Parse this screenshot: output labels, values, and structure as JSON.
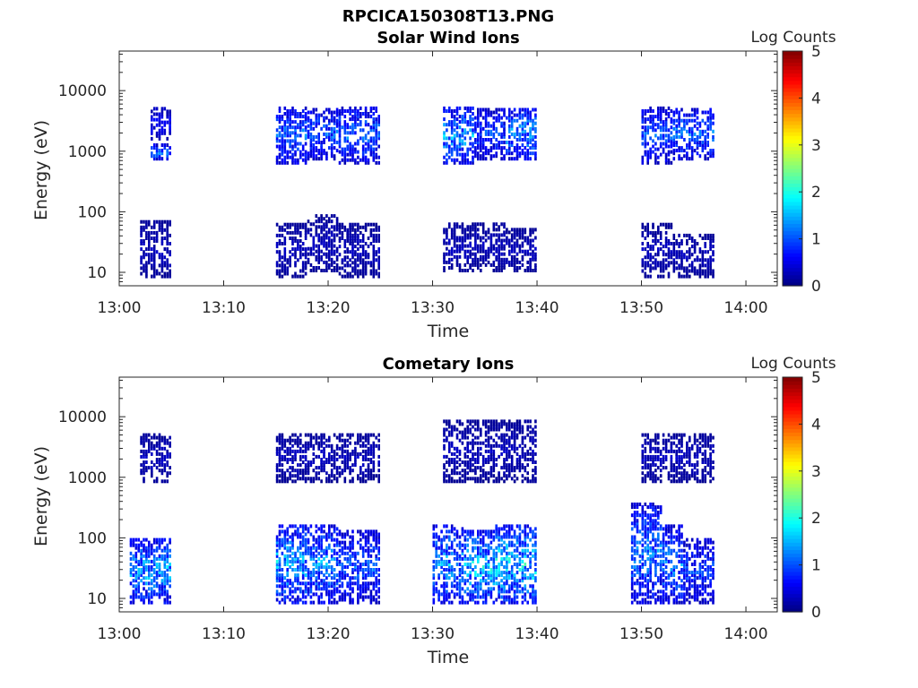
{
  "figure_title": "RPCICA150308T13.PNG",
  "colorbar": {
    "label": "Log Counts",
    "ticks": [
      "0",
      "1",
      "2",
      "3",
      "4",
      "5"
    ],
    "range": [
      0,
      5
    ],
    "colormap": "jet"
  },
  "chart_data": [
    {
      "type": "heatmap",
      "title": "Solar Wind Ions",
      "xlabel": "Time",
      "ylabel": "Energy (eV)",
      "xlim": [
        "13:00",
        "14:03"
      ],
      "ylim": [
        6,
        45000
      ],
      "yscale": "log",
      "x_ticks": [
        "13:00",
        "13:10",
        "13:20",
        "13:30",
        "13:40",
        "13:50",
        "14:00"
      ],
      "y_ticks": [
        "10",
        "100",
        "1000",
        "10000"
      ],
      "grid": false,
      "value_label": "Log Counts",
      "active_intervals": [
        [
          "13:01",
          "13:04"
        ],
        [
          "13:15",
          "13:24"
        ],
        [
          "13:30",
          "13:40"
        ],
        [
          "13:49",
          "13:56"
        ]
      ],
      "clusters": [
        {
          "t0": "13:02",
          "t1": "13:04",
          "e0": 8,
          "e1": 65,
          "value": 0.3
        },
        {
          "t0": "13:03",
          "t1": "13:04",
          "e0": 1500,
          "e1": 5000,
          "value": 0.6
        },
        {
          "t0": "13:03",
          "t1": "13:04",
          "e0": 700,
          "e1": 1200,
          "value": 1.2
        },
        {
          "t0": "13:15",
          "t1": "13:17",
          "e0": 8,
          "e1": 60,
          "value": 0.3
        },
        {
          "t0": "13:15",
          "t1": "13:17",
          "e0": 600,
          "e1": 5000,
          "value": 1.1
        },
        {
          "t0": "13:18",
          "t1": "13:20",
          "e0": 10,
          "e1": 80,
          "value": 0.3
        },
        {
          "t0": "13:18",
          "t1": "13:20",
          "e0": 700,
          "e1": 5000,
          "value": 1.0
        },
        {
          "t0": "13:21",
          "t1": "13:24",
          "e0": 8,
          "e1": 60,
          "value": 0.3
        },
        {
          "t0": "13:21",
          "t1": "13:24",
          "e0": 600,
          "e1": 5000,
          "value": 1.1
        },
        {
          "t0": "13:31",
          "t1": "13:33",
          "e0": 10,
          "e1": 60,
          "value": 0.3
        },
        {
          "t0": "13:31",
          "t1": "13:33",
          "e0": 600,
          "e1": 5000,
          "value": 1.4
        },
        {
          "t0": "13:34",
          "t1": "13:36",
          "e0": 10,
          "e1": 60,
          "value": 0.3
        },
        {
          "t0": "13:34",
          "t1": "13:36",
          "e0": 700,
          "e1": 5000,
          "value": 0.9
        },
        {
          "t0": "13:37",
          "t1": "13:39",
          "e0": 10,
          "e1": 50,
          "value": 0.3
        },
        {
          "t0": "13:37",
          "t1": "13:39",
          "e0": 700,
          "e1": 5000,
          "value": 1.3
        },
        {
          "t0": "13:50",
          "t1": "13:52",
          "e0": 8,
          "e1": 60,
          "value": 0.3
        },
        {
          "t0": "13:50",
          "t1": "13:52",
          "e0": 600,
          "e1": 5000,
          "value": 1.0
        },
        {
          "t0": "13:53",
          "t1": "13:56",
          "e0": 8,
          "e1": 40,
          "value": 0.3
        },
        {
          "t0": "13:53",
          "t1": "13:56",
          "e0": 700,
          "e1": 5000,
          "value": 1.1
        }
      ]
    },
    {
      "type": "heatmap",
      "title": "Cometary Ions",
      "xlabel": "Time",
      "ylabel": "Energy (eV)",
      "xlim": [
        "13:00",
        "14:03"
      ],
      "ylim": [
        6,
        45000
      ],
      "yscale": "log",
      "x_ticks": [
        "13:00",
        "13:10",
        "13:20",
        "13:30",
        "13:40",
        "13:50",
        "14:00"
      ],
      "y_ticks": [
        "10",
        "100",
        "1000",
        "10000"
      ],
      "grid": false,
      "value_label": "Log Counts",
      "active_intervals": [
        [
          "13:01",
          "13:04"
        ],
        [
          "13:15",
          "13:24"
        ],
        [
          "13:30",
          "13:40"
        ],
        [
          "13:49",
          "13:56"
        ]
      ],
      "clusters": [
        {
          "t0": "13:01",
          "t1": "13:04",
          "e0": 8,
          "e1": 90,
          "value": 1.4
        },
        {
          "t0": "13:02",
          "t1": "13:04",
          "e0": 800,
          "e1": 5000,
          "value": 0.3
        },
        {
          "t0": "13:15",
          "t1": "13:17",
          "e0": 8,
          "e1": 150,
          "value": 1.5
        },
        {
          "t0": "13:18",
          "t1": "13:20",
          "e0": 8,
          "e1": 150,
          "value": 1.3
        },
        {
          "t0": "13:21",
          "t1": "13:24",
          "e0": 8,
          "e1": 120,
          "value": 1.0
        },
        {
          "t0": "13:15",
          "t1": "13:24",
          "e0": 800,
          "e1": 5000,
          "value": 0.3
        },
        {
          "t0": "13:30",
          "t1": "13:32",
          "e0": 8,
          "e1": 150,
          "value": 1.4
        },
        {
          "t0": "13:33",
          "t1": "13:35",
          "e0": 8,
          "e1": 120,
          "value": 1.6
        },
        {
          "t0": "13:36",
          "t1": "13:39",
          "e0": 8,
          "e1": 150,
          "value": 1.7
        },
        {
          "t0": "13:31",
          "t1": "13:39",
          "e0": 800,
          "e1": 8000,
          "value": 0.3
        },
        {
          "t0": "13:49",
          "t1": "13:51",
          "e0": 8,
          "e1": 350,
          "value": 1.2
        },
        {
          "t0": "13:52",
          "t1": "13:53",
          "e0": 8,
          "e1": 150,
          "value": 1.2
        },
        {
          "t0": "13:54",
          "t1": "13:56",
          "e0": 8,
          "e1": 90,
          "value": 0.9
        },
        {
          "t0": "13:50",
          "t1": "13:56",
          "e0": 800,
          "e1": 5000,
          "value": 0.3
        }
      ]
    }
  ]
}
